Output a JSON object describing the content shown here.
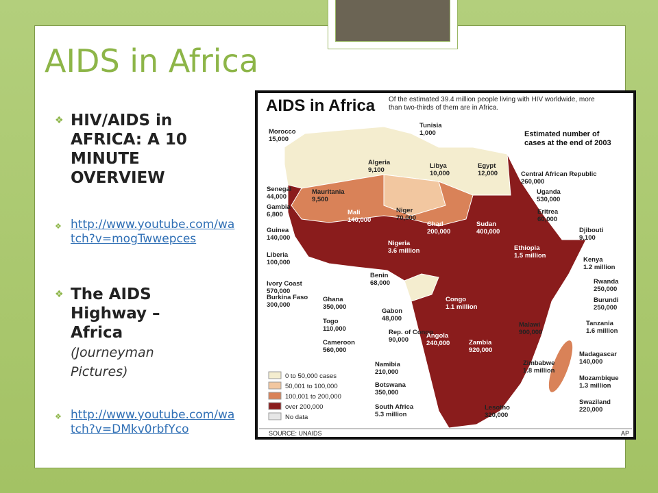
{
  "slide": {
    "title": "AIDS in Africa",
    "bullets": [
      {
        "text": "HIV/AIDS in AFRICA: A 10 MINUTE OVERVIEW"
      },
      {
        "link": "http://www.youtube.com/watch?v=mogTwwepces"
      },
      {
        "text": "The AIDS Highway – Africa",
        "note": "(Journeyman Pictures)"
      },
      {
        "link": "http://www.youtube.com/watch?v=DMkv0rbfYco"
      }
    ]
  },
  "map": {
    "title": "AIDS in Africa",
    "description": [
      "Of the estimated 39.4 million people living with HIV worldwide, more",
      "than two-thirds of them are in Africa."
    ],
    "subtitle": [
      "Estimated number of",
      "cases at the end of 2003"
    ],
    "labels": [
      {
        "name": "Morocco",
        "value": "15,000"
      },
      {
        "name": "Tunisia",
        "value": "1,000"
      },
      {
        "name": "Algeria",
        "value": "9,100"
      },
      {
        "name": "Libya",
        "value": "10,000"
      },
      {
        "name": "Egypt",
        "value": "12,000"
      },
      {
        "name": "Central African Republic",
        "value": "260,000"
      },
      {
        "name": "Senegal",
        "value": "44,000"
      },
      {
        "name": "Mauritania",
        "value": "9,500"
      },
      {
        "name": "Uganda",
        "value": "530,000"
      },
      {
        "name": "Gambia",
        "value": "6,800"
      },
      {
        "name": "Eritrea",
        "value": "60,000"
      },
      {
        "name": "Mali",
        "value": "140,000"
      },
      {
        "name": "Niger",
        "value": "70,000"
      },
      {
        "name": "Chad",
        "value": "200,000"
      },
      {
        "name": "Sudan",
        "value": "400,000"
      },
      {
        "name": "Djibouti",
        "value": "9,100"
      },
      {
        "name": "Guinea",
        "value": "140,000"
      },
      {
        "name": "Nigeria",
        "value": "3.6 million"
      },
      {
        "name": "Ethiopia",
        "value": "1.5 million"
      },
      {
        "name": "Liberia",
        "value": "100,000"
      },
      {
        "name": "Kenya",
        "value": "1.2 million"
      },
      {
        "name": "Ivory Coast",
        "value": "570,000"
      },
      {
        "name": "Benin",
        "value": "68,000"
      },
      {
        "name": "Rwanda",
        "value": "250,000"
      },
      {
        "name": "Burkina Faso",
        "value": "300,000"
      },
      {
        "name": "Ghana",
        "value": "350,000"
      },
      {
        "name": "Congo",
        "value": "1.1 million"
      },
      {
        "name": "Burundi",
        "value": "250,000"
      },
      {
        "name": "Gabon",
        "value": "48,000"
      },
      {
        "name": "Togo",
        "value": "110,000"
      },
      {
        "name": "Malawi",
        "value": "900,000"
      },
      {
        "name": "Tanzania",
        "value": "1.6 million"
      },
      {
        "name": "Rep. of Congo",
        "value": "90,000"
      },
      {
        "name": "Angola",
        "value": "240,000"
      },
      {
        "name": "Zambia",
        "value": "920,000"
      },
      {
        "name": "Cameroon",
        "value": "560,000"
      },
      {
        "name": "Madagascar",
        "value": "140,000"
      },
      {
        "name": "Namibia",
        "value": "210,000"
      },
      {
        "name": "Zimbabwe",
        "value": "1.8 million"
      },
      {
        "name": "Botswana",
        "value": "350,000"
      },
      {
        "name": "Mozambique",
        "value": "1.3 million"
      },
      {
        "name": "South Africa",
        "value": "5.3 million"
      },
      {
        "name": "Swaziland",
        "value": "220,000"
      },
      {
        "name": "Lesotho",
        "value": "320,000"
      }
    ],
    "legend": [
      {
        "label": "0 to 50,000 cases",
        "color": "#f4edcf"
      },
      {
        "label": "50,001 to 100,000",
        "color": "#f2c7a0"
      },
      {
        "label": "100,001 to 200,000",
        "color": "#d98258"
      },
      {
        "label": "over 200,000",
        "color": "#8a1c1c"
      },
      {
        "label": "No data",
        "color": "#e6e6e6"
      }
    ],
    "source": "SOURCE: UNAIDS",
    "credit": "AP"
  }
}
